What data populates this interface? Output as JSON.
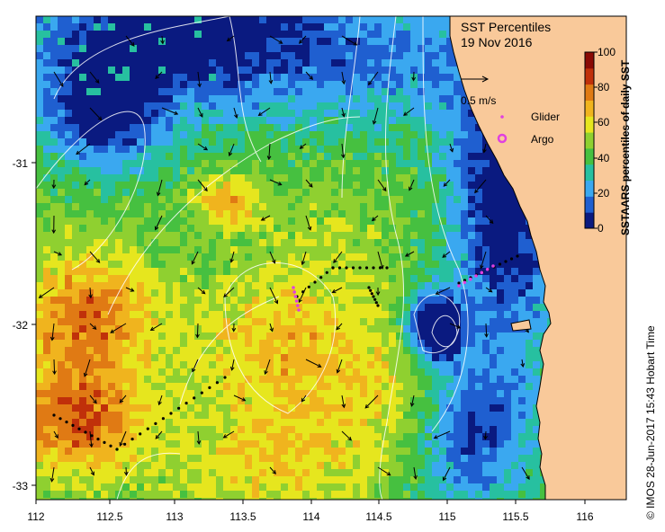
{
  "title": {
    "line1": "SST Percentiles",
    "line2": "19 Nov 2016"
  },
  "legend": {
    "current_scale": "0.5 m/s",
    "glider_label": "Glider",
    "argo_label": "Argo",
    "glider_color": "#e040e0",
    "argo_color": "#e040e0"
  },
  "colorbar": {
    "title": "SSTAARS percentiles of daily SST",
    "ticks": [
      "0",
      "20",
      "40",
      "60",
      "80",
      "100"
    ],
    "colors": [
      "#0a1a80",
      "#1f5fd0",
      "#3aa8f0",
      "#27c0a0",
      "#46c040",
      "#8fd030",
      "#e6e61e",
      "#f0b41e",
      "#e07a14",
      "#c0300a",
      "#8a0a05"
    ]
  },
  "axes": {
    "lon_ticks": [
      "112",
      "112.5",
      "113",
      "113.5",
      "114",
      "114.5",
      "115",
      "115.5",
      "116"
    ],
    "lat_ticks": [
      "-31",
      "-32",
      "-33"
    ]
  },
  "credit": "© IMOS 28-Jun-2017 15:43 Hobart Time",
  "colors": {
    "land": "#f9c99a",
    "coast": "#000000",
    "contour": "#ffffff",
    "background": "#ffffff"
  }
}
